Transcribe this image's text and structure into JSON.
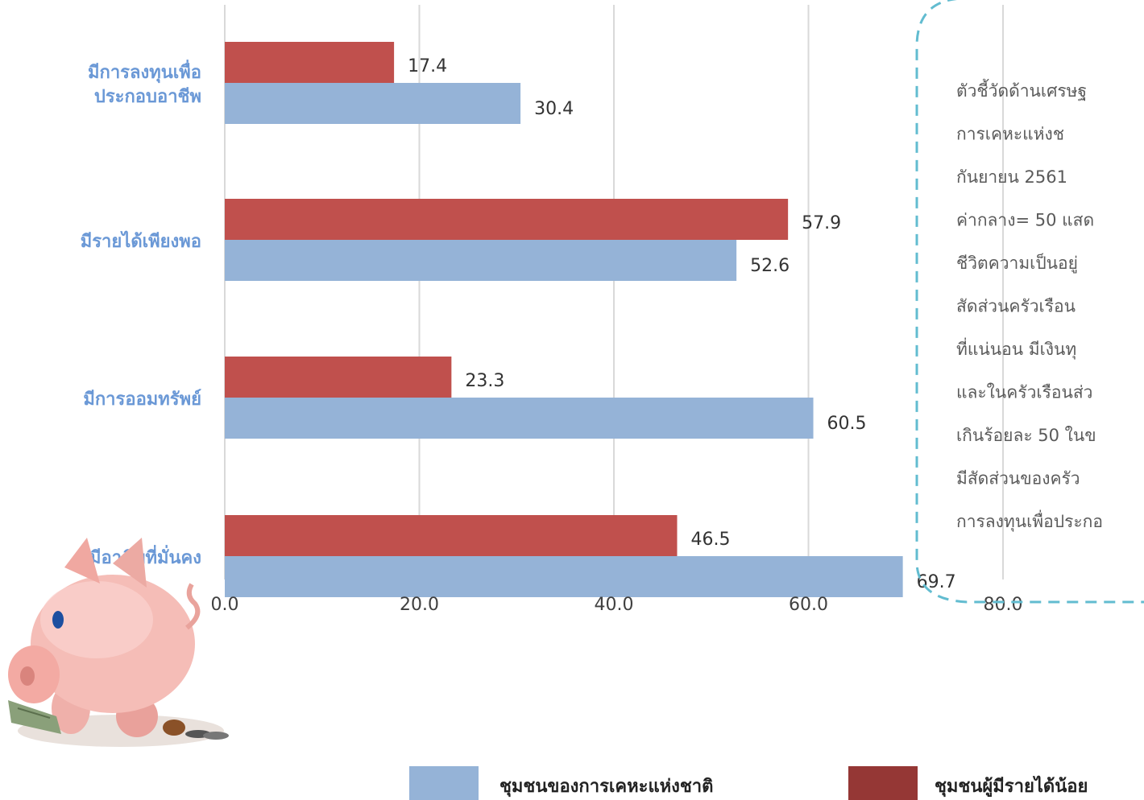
{
  "chart_data": {
    "type": "bar",
    "orientation": "horizontal",
    "categories": [
      [
        "มีการลงทุนเพื่อ",
        "ประกอบอาชีพ"
      ],
      [
        "มีรายได้เพียงพอ"
      ],
      [
        "มีการออมทรัพย์"
      ],
      [
        "มีอาชีพที่มั่นคง"
      ]
    ],
    "series": [
      {
        "name": "ชุมชนผู้มีรายได้น้อย",
        "color": "#c0504d",
        "values": [
          17.4,
          57.9,
          23.3,
          46.5
        ]
      },
      {
        "name": "ชุมชนของการเคหะแห่งชาติ",
        "color": "#95b3d7",
        "values": [
          30.4,
          52.6,
          60.5,
          69.7
        ]
      }
    ],
    "x_ticks": [
      "0.0",
      "20.0",
      "40.0",
      "60.0",
      "80.0"
    ],
    "xlim": [
      0,
      80
    ],
    "value_labels": true,
    "grid": true
  },
  "legend": [
    {
      "label": "ชุมชนของการเคหะแห่งชาติ",
      "color": "#95b3d7"
    },
    {
      "label": "ชุมชนผู้มีรายได้น้อย",
      "color": "#953735"
    }
  ],
  "note": {
    "lines": [
      "ตัวชี้วัดด้านเศรษฐ",
      "การเคหะแห่งช",
      "กันยายน 2561",
      "ค่ากลาง= 50 แสด",
      "ชีวิตความเป็นอยู่",
      "สัดส่วนครัวเรือน",
      "ที่แน่นอน มีเงินทุ",
      "และในครัวเรือนส่ว",
      "เกินร้อยละ 50 ในข",
      "มีสัดส่วนของครัว",
      "การลงทุนเพื่อประกอ"
    ]
  },
  "illustration": {
    "icon": "piggy-bank-icon"
  },
  "colors": {
    "grid": "#d9d9d9",
    "category_text": "#6a98d6",
    "note_border": "#62bcd0"
  }
}
